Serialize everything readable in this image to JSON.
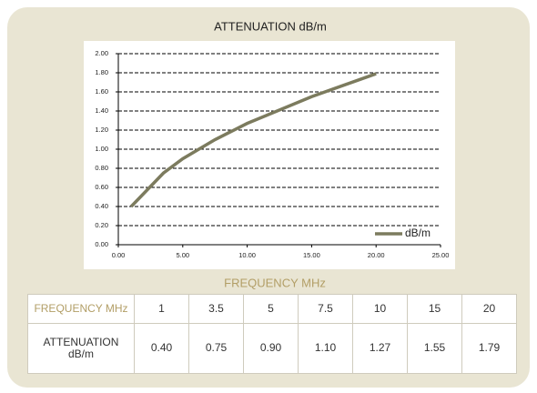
{
  "chart_data": {
    "type": "line",
    "title": "ATTENUATION dB/m",
    "xlabel": "FREQUENCY MHz",
    "x": [
      1,
      3.5,
      5,
      7.5,
      10,
      15,
      20
    ],
    "series": [
      {
        "name": "dB/m",
        "color": "#7c7b5e",
        "values": [
          0.4,
          0.75,
          0.9,
          1.1,
          1.27,
          1.55,
          1.79
        ]
      }
    ],
    "xlim": [
      0,
      25
    ],
    "xticks": [
      {
        "value": 0,
        "label": "0.00"
      },
      {
        "value": 5,
        "label": "5.00"
      },
      {
        "value": 10,
        "label": "10.00"
      },
      {
        "value": 15,
        "label": "15.00"
      },
      {
        "value": 20,
        "label": "20.00"
      },
      {
        "value": 25,
        "label": "25.00"
      }
    ],
    "ylim": [
      0,
      2
    ],
    "yticks": [
      {
        "value": 0,
        "label": "0.00"
      },
      {
        "value": 0.2,
        "label": "0.20"
      },
      {
        "value": 0.4,
        "label": "0.40"
      },
      {
        "value": 0.6,
        "label": "0.60"
      },
      {
        "value": 0.8,
        "label": "0.80"
      },
      {
        "value": 1,
        "label": "1.00"
      },
      {
        "value": 1.2,
        "label": "1.20"
      },
      {
        "value": 1.4,
        "label": "1.40"
      },
      {
        "value": 1.6,
        "label": "1.60"
      },
      {
        "value": 1.8,
        "label": "1.80"
      },
      {
        "value": 2,
        "label": "2.00"
      }
    ],
    "grid": true,
    "legend": "lower right"
  },
  "table": {
    "rows": [
      [
        "FREQUENCY MHz",
        "1",
        "3.5",
        "5",
        "7.5",
        "10",
        "15",
        "20"
      ],
      [
        "ATTENUATION dB/m",
        "0.40",
        "0.75",
        "0.90",
        "1.10",
        "1.27",
        "1.55",
        "1.79"
      ]
    ]
  }
}
